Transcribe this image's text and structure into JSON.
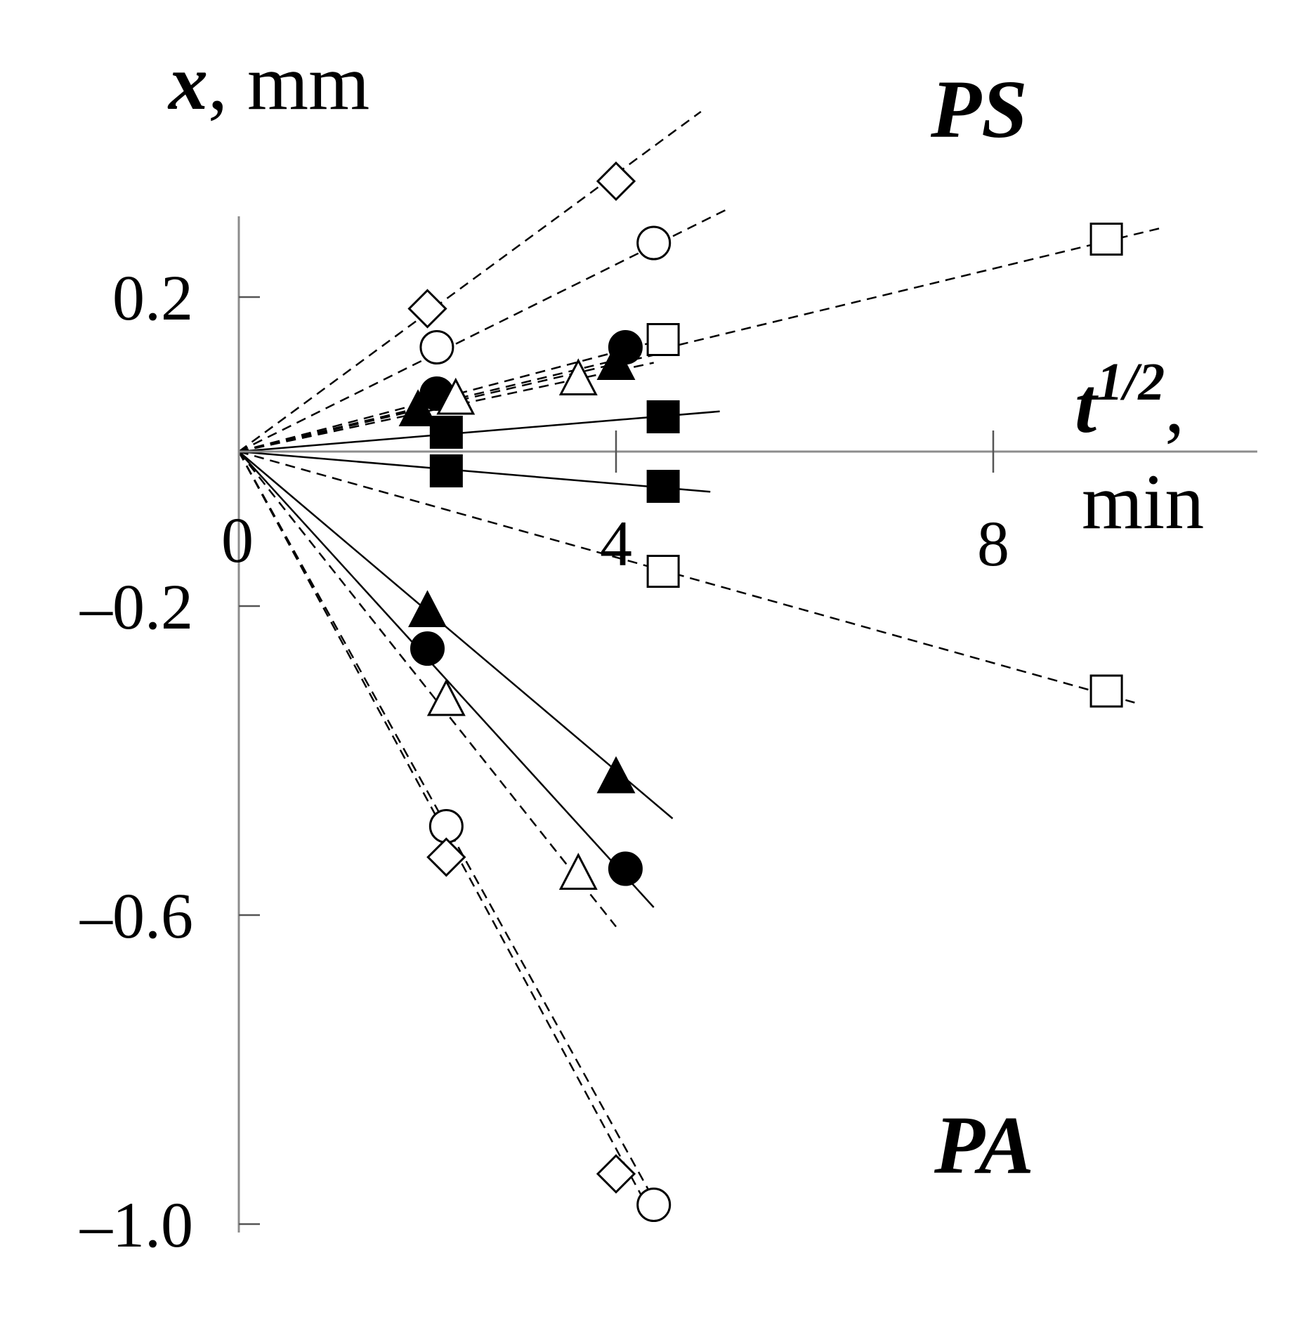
{
  "chart_data": {
    "type": "scatter",
    "x_axis": {
      "title_var": "t",
      "title_sup": "1/2",
      "title_comma": ",",
      "title_unit": "min",
      "range": [
        0,
        10.8
      ],
      "ticks": [
        4,
        8
      ],
      "tick_labels": [
        "4",
        "8"
      ]
    },
    "y_axis": {
      "title_var": "x",
      "title_unit": ", mm",
      "range": [
        -1.0,
        0.3
      ],
      "ticks": [
        0.2,
        -0.2,
        -0.6,
        -1.0
      ],
      "tick_labels": [
        "0.2",
        "–0.2",
        "–0.6",
        "–1.0"
      ]
    },
    "origin_label": "0",
    "regions": [
      "PS",
      "PA"
    ],
    "series": [
      {
        "marker": "diamond-open",
        "line": "dashed",
        "points": [
          [
            2.0,
            0.185
          ],
          [
            4.0,
            0.35
          ]
        ],
        "fit_end": [
          4.9,
          0.44
        ]
      },
      {
        "marker": "circle-open",
        "line": "dashed",
        "points": [
          [
            2.1,
            0.135
          ],
          [
            4.4,
            0.27
          ]
        ],
        "fit_end": [
          5.2,
          0.315
        ]
      },
      {
        "marker": "square-open",
        "line": "dashed",
        "points": [
          [
            4.5,
            0.145
          ],
          [
            9.2,
            0.275
          ]
        ],
        "fit_end": [
          9.8,
          0.29
        ]
      },
      {
        "marker": "circle-filled",
        "line": "dashed",
        "points": [
          [
            2.1,
            0.075
          ],
          [
            4.1,
            0.135
          ]
        ],
        "fit_end": [
          4.5,
          0.145
        ]
      },
      {
        "marker": "triangle-filled",
        "line": "dashed",
        "points": [
          [
            1.9,
            0.055
          ],
          [
            4.0,
            0.115
          ]
        ],
        "fit_end": [
          4.4,
          0.125
        ]
      },
      {
        "marker": "triangle-open",
        "line": "dashed",
        "points": [
          [
            2.3,
            0.07
          ],
          [
            3.6,
            0.095
          ]
        ],
        "fit_end": [
          4.4,
          0.115
        ]
      },
      {
        "marker": "square-filled",
        "line": "solid",
        "points": [
          [
            2.2,
            0.025
          ],
          [
            4.5,
            0.045
          ]
        ],
        "fit_end": [
          5.1,
          0.052
        ]
      },
      {
        "marker": "square-filled",
        "line": "solid",
        "points": [
          [
            2.2,
            -0.025
          ],
          [
            4.5,
            -0.045
          ]
        ],
        "fit_end": [
          5.0,
          -0.052
        ]
      },
      {
        "marker": "square-open",
        "line": "dashed",
        "points": [
          [
            4.5,
            -0.155
          ],
          [
            9.2,
            -0.31
          ]
        ],
        "fit_end": [
          9.5,
          -0.325
        ]
      },
      {
        "marker": "triangle-filled",
        "line": "solid",
        "points": [
          [
            2.0,
            -0.205
          ],
          [
            4.0,
            -0.42
          ]
        ],
        "fit_end": [
          4.6,
          -0.475
        ]
      },
      {
        "marker": "circle-filled",
        "line": "solid",
        "points": [
          [
            2.0,
            -0.255
          ],
          [
            4.1,
            -0.54
          ]
        ],
        "fit_end": [
          4.4,
          -0.59
        ]
      },
      {
        "marker": "triangle-open",
        "line": "dashed",
        "points": [
          [
            2.2,
            -0.32
          ],
          [
            3.6,
            -0.545
          ]
        ],
        "fit_end": [
          4.0,
          -0.615
        ]
      },
      {
        "marker": "circle-open",
        "line": "dashed",
        "points": [
          [
            2.2,
            -0.485
          ],
          [
            4.4,
            -0.975
          ]
        ],
        "fit_end": [
          4.5,
          -0.99
        ]
      },
      {
        "marker": "diamond-open",
        "line": "dashed",
        "points": [
          [
            2.2,
            -0.525
          ],
          [
            4.0,
            -0.935
          ]
        ],
        "fit_end": [
          4.3,
          -0.97
        ]
      }
    ]
  }
}
